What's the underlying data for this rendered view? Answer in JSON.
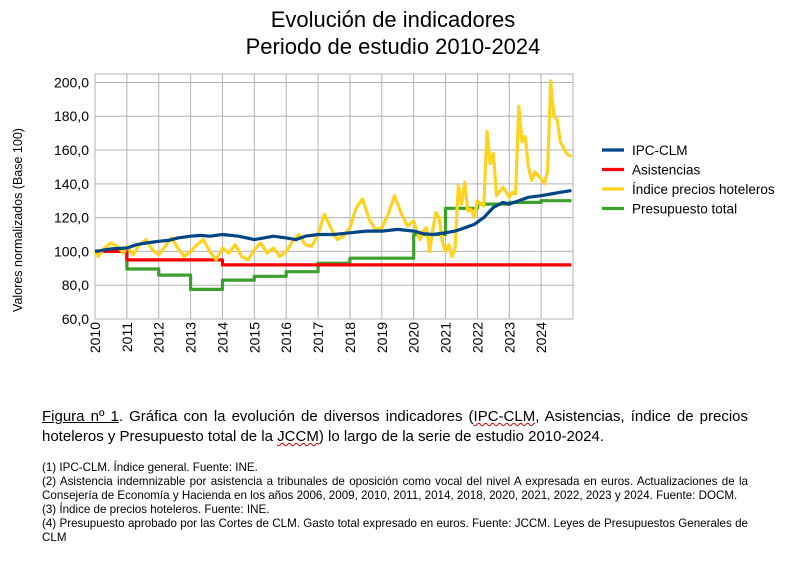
{
  "chart_data": {
    "type": "line",
    "title": "Evolución de indicadores",
    "subtitle": "Periodo de estudio 2010-2024",
    "ylabel": "Valores normalizados (Base 100)",
    "xlabel": "",
    "xlim": [
      2010,
      2025
    ],
    "ylim": [
      60,
      205
    ],
    "yticks": [
      "60,0",
      "80,0",
      "100,0",
      "120,0",
      "140,0",
      "160,0",
      "180,0",
      "200,0"
    ],
    "xticks": [
      "2010",
      "2011",
      "2012",
      "2013",
      "2014",
      "2015",
      "2016",
      "2017",
      "2018",
      "2019",
      "2020",
      "2021",
      "2022",
      "2023",
      "2024"
    ],
    "grid": true,
    "legend_position": "right",
    "series": [
      {
        "name": "IPC-CLM",
        "color": "#004586",
        "x": [
          2010,
          2010.5,
          2011,
          2011.3,
          2011.6,
          2012,
          2012.3,
          2012.6,
          2013,
          2013.3,
          2013.6,
          2014,
          2014.5,
          2015,
          2015.3,
          2015.6,
          2016,
          2016.3,
          2016.6,
          2017,
          2017.5,
          2018,
          2018.5,
          2019,
          2019.5,
          2020,
          2020.3,
          2020.6,
          2021,
          2021.3,
          2021.6,
          2021.9,
          2022.2,
          2022.5,
          2022.8,
          2023,
          2023.3,
          2023.6,
          2024,
          2024.3,
          2024.6,
          2024.95
        ],
        "y": [
          100,
          101.5,
          102,
          104,
          105,
          106,
          106.5,
          108,
          109,
          109.5,
          109,
          110,
          109,
          107,
          108,
          109,
          108,
          107,
          109,
          110,
          110,
          111,
          112,
          112,
          113,
          112,
          110.5,
          110,
          111,
          112,
          114,
          116,
          120,
          126,
          129,
          128,
          130,
          132,
          133,
          134,
          135,
          136
        ]
      },
      {
        "name": "Asistencias",
        "color": "#ff0000",
        "x": [
          2010,
          2011,
          2011,
          2014,
          2014,
          2024.95
        ],
        "y": [
          100,
          100,
          95,
          95,
          92,
          92
        ]
      },
      {
        "name": "Índice precios hoteleros",
        "color": "#ffd320",
        "x": [
          2010,
          2010.1,
          2010.3,
          2010.5,
          2010.7,
          2010.9,
          2011,
          2011.2,
          2011.4,
          2011.6,
          2011.8,
          2012,
          2012.2,
          2012.4,
          2012.6,
          2012.8,
          2013,
          2013.2,
          2013.4,
          2013.6,
          2013.8,
          2014,
          2014.2,
          2014.4,
          2014.6,
          2014.8,
          2015,
          2015.2,
          2015.4,
          2015.6,
          2015.8,
          2016,
          2016.2,
          2016.4,
          2016.6,
          2016.8,
          2017,
          2017.2,
          2017.4,
          2017.6,
          2017.8,
          2018,
          2018.2,
          2018.4,
          2018.6,
          2018.8,
          2019,
          2019.2,
          2019.4,
          2019.6,
          2019.8,
          2020,
          2020.1,
          2020.2,
          2020.3,
          2020.4,
          2020.5,
          2020.6,
          2020.7,
          2020.8,
          2020.9,
          2021,
          2021.1,
          2021.2,
          2021.3,
          2021.4,
          2021.5,
          2021.6,
          2021.7,
          2021.8,
          2021.9,
          2022,
          2022.1,
          2022.2,
          2022.3,
          2022.4,
          2022.5,
          2022.6,
          2022.8,
          2023,
          2023.1,
          2023.2,
          2023.3,
          2023.4,
          2023.5,
          2023.6,
          2023.7,
          2023.8,
          2024,
          2024.1,
          2024.2,
          2024.3,
          2024.4,
          2024.5,
          2024.6,
          2024.8,
          2024.95
        ],
        "y": [
          100,
          97,
          102,
          105,
          103,
          99,
          103,
          98,
          104,
          107,
          101,
          98,
          103,
          108,
          102,
          97,
          100,
          104,
          107,
          100,
          95,
          102,
          99,
          104,
          97,
          95,
          101,
          105,
          99,
          102,
          97,
          100,
          106,
          110,
          104,
          103,
          110,
          122,
          114,
          107,
          109,
          114,
          126,
          131,
          119,
          113,
          114,
          122,
          133,
          123,
          115,
          118,
          112,
          107,
          112,
          114,
          100,
          113,
          123,
          120,
          106,
          100,
          104,
          97,
          102,
          139,
          128,
          141,
          124,
          125,
          120,
          130,
          128,
          127,
          171,
          152,
          158,
          133,
          138,
          132,
          135,
          134,
          186,
          165,
          168,
          150,
          142,
          147,
          143,
          140,
          147,
          201,
          180,
          178,
          165,
          158,
          156
        ]
      },
      {
        "name": "Presupuesto total",
        "color": "#3ca02c",
        "x": [
          2010,
          2011,
          2011,
          2012,
          2012,
          2013,
          2013,
          2014,
          2014,
          2015,
          2015,
          2016,
          2016,
          2017,
          2017,
          2018,
          2018,
          2020,
          2020,
          2021,
          2021,
          2022,
          2022,
          2023,
          2023,
          2024,
          2024,
          2024.95
        ],
        "y": [
          100,
          100,
          89.6,
          89.6,
          86,
          86,
          77.5,
          77.5,
          83,
          83,
          85.3,
          85.3,
          88,
          88,
          93,
          93,
          96,
          96,
          110,
          110,
          125.5,
          125.5,
          128,
          128,
          129,
          129,
          130,
          130
        ]
      }
    ]
  },
  "caption": {
    "fig_label": "Figura nº 1",
    "text_1": ". Gráfica con la evolución de diversos indicadores (",
    "term_ipc": "IPC-CLM",
    "text_2": ", Asistencias, índice de precios hoteleros y Presupuesto total de la ",
    "term_jccm": "JCCM",
    "text_3": ") lo largo de la serie de estudio 2010-2024."
  },
  "notes": [
    "(1) IPC-CLM. Índice general. Fuente: INE.",
    "(2) Asistencia indemnizable por asistencia a tribunales de oposición como vocal del nivel A expresada en euros. Actualizaciones de la Consejería de Economía y Hacienda en los años 2006, 2009, 2010, 2011, 2014, 2018, 2020, 2021, 2022, 2023 y 2024. Fuente: DOCM.",
    "(3) Índice de precios hoteleros. Fuente: INE.",
    "(4) Presupuesto aprobado por las Cortes de CLM. Gasto total expresado en euros. Fuente:  JCCM. Leyes de Presupuestos Generales de CLM"
  ]
}
